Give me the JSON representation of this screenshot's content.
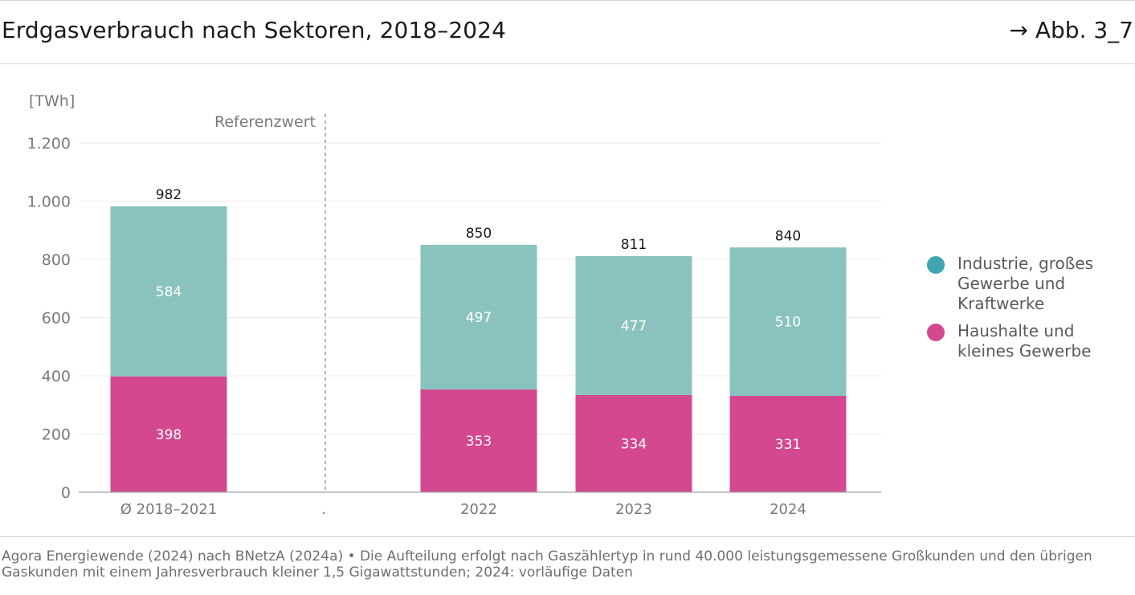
{
  "header": {
    "title": "Erdgasverbrauch nach Sektoren, 2018–2024",
    "figure_ref": "→ Abb. 3_7"
  },
  "footer": {
    "source": "Agora Energiewende (2024) nach BNetzA (2024a) • Die Aufteilung erfolgt nach Gaszählertyp in rund 40.000 leistungsgemessene Großkunden und den übrigen Gaskunden mit einem Jahresverbrauch kleiner 1,5 Gigawattstunden; 2024: vorläufige Daten"
  },
  "chart_data": {
    "type": "bar",
    "stacked": true,
    "ylabel": "[TWh]",
    "ylim": [
      0,
      1200
    ],
    "yticks": [
      0,
      200,
      400,
      600,
      800,
      1000,
      1200
    ],
    "ytick_labels": [
      "0",
      "200",
      "400",
      "600",
      "800",
      "1.000",
      "1.200"
    ],
    "grid": true,
    "categories": [
      "Ø 2018–2021",
      ".",
      "2022",
      "2023",
      "2024"
    ],
    "series": [
      {
        "name": "Haushalte und kleines Gewerbe",
        "color": "#d3488f",
        "values": [
          398,
          null,
          353,
          334,
          331
        ]
      },
      {
        "name": "Industrie, großes Gewerbe und Kraftwerke",
        "color": "#8ac3bd",
        "values": [
          584,
          null,
          497,
          477,
          510
        ]
      }
    ],
    "totals": [
      982,
      null,
      850,
      811,
      840
    ],
    "segment_labels": [
      [
        "398",
        null,
        "353",
        "334",
        "331"
      ],
      [
        "584",
        null,
        "497",
        "477",
        "510"
      ]
    ],
    "total_labels": [
      "982",
      null,
      "850",
      "811",
      "840"
    ],
    "annotation": "Referenzwert",
    "legend": {
      "placement": "right",
      "items": [
        {
          "label": "Industrie, großes Gewerbe und Kraftwerke",
          "color": "#41a6b0"
        },
        {
          "label": "Haushalte und kleines Gewerbe",
          "color": "#d3488f"
        }
      ]
    }
  }
}
